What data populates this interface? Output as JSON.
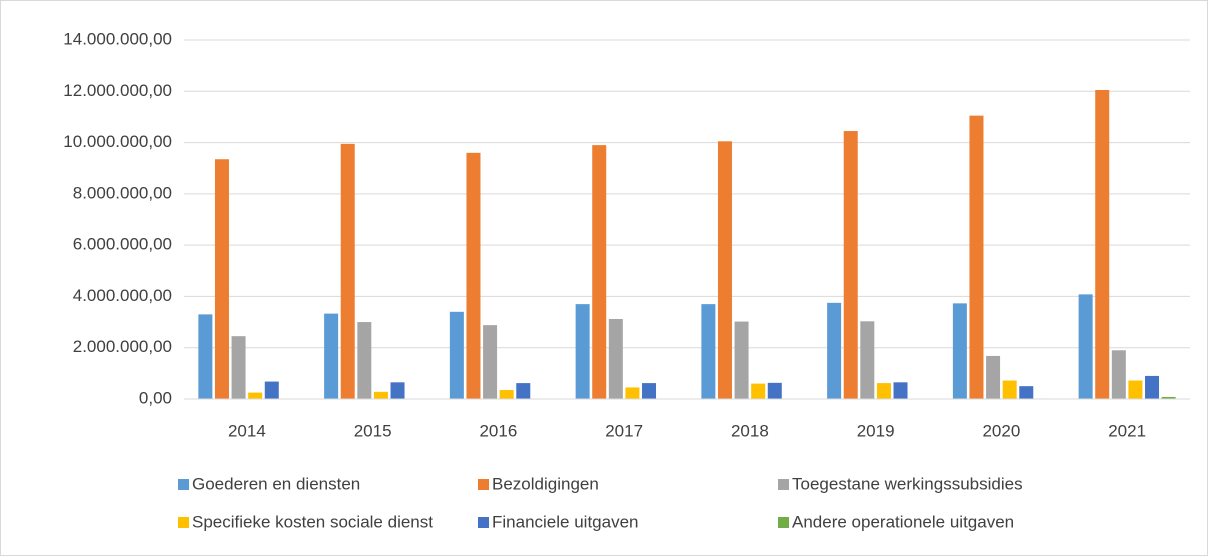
{
  "chart_data": {
    "type": "bar",
    "categories": [
      "2014",
      "2015",
      "2016",
      "2017",
      "2018",
      "2019",
      "2020",
      "2021"
    ],
    "series": [
      {
        "name": "Goederen en diensten",
        "color": "#5b9bd5",
        "values": [
          3300000,
          3330000,
          3400000,
          3700000,
          3700000,
          3750000,
          3730000,
          4080000
        ]
      },
      {
        "name": "Bezoldigingen",
        "color": "#ed7d31",
        "values": [
          9350000,
          9950000,
          9600000,
          9900000,
          10050000,
          10450000,
          11050000,
          12050000
        ]
      },
      {
        "name": "Toegestane werkingssubsidies",
        "color": "#a5a5a5",
        "values": [
          2450000,
          3000000,
          2880000,
          3120000,
          3020000,
          3030000,
          1680000,
          1900000
        ]
      },
      {
        "name": "Specifieke kosten sociale dienst",
        "color": "#ffc000",
        "values": [
          250000,
          280000,
          350000,
          450000,
          600000,
          620000,
          720000,
          720000
        ]
      },
      {
        "name": "Financiele uitgaven",
        "color": "#4472c4",
        "values": [
          680000,
          650000,
          620000,
          620000,
          630000,
          650000,
          500000,
          900000
        ]
      },
      {
        "name": "Andere operationele uitgaven",
        "color": "#70ad47",
        "values": [
          10000,
          10000,
          10000,
          10000,
          10000,
          10000,
          20000,
          80000
        ]
      }
    ],
    "ylim": [
      0,
      14000000
    ],
    "yticks": [
      {
        "value": 0,
        "label": "0,00"
      },
      {
        "value": 2000000,
        "label": "2.000.000,00"
      },
      {
        "value": 4000000,
        "label": "4.000.000,00"
      },
      {
        "value": 6000000,
        "label": "6.000.000,00"
      },
      {
        "value": 8000000,
        "label": "8.000.000,00"
      },
      {
        "value": 10000000,
        "label": "10.000.000,00"
      },
      {
        "value": 12000000,
        "label": "12.000.000,00"
      },
      {
        "value": 14000000,
        "label": "14.000.000,00"
      }
    ],
    "grid": true,
    "legend": "bottom"
  }
}
